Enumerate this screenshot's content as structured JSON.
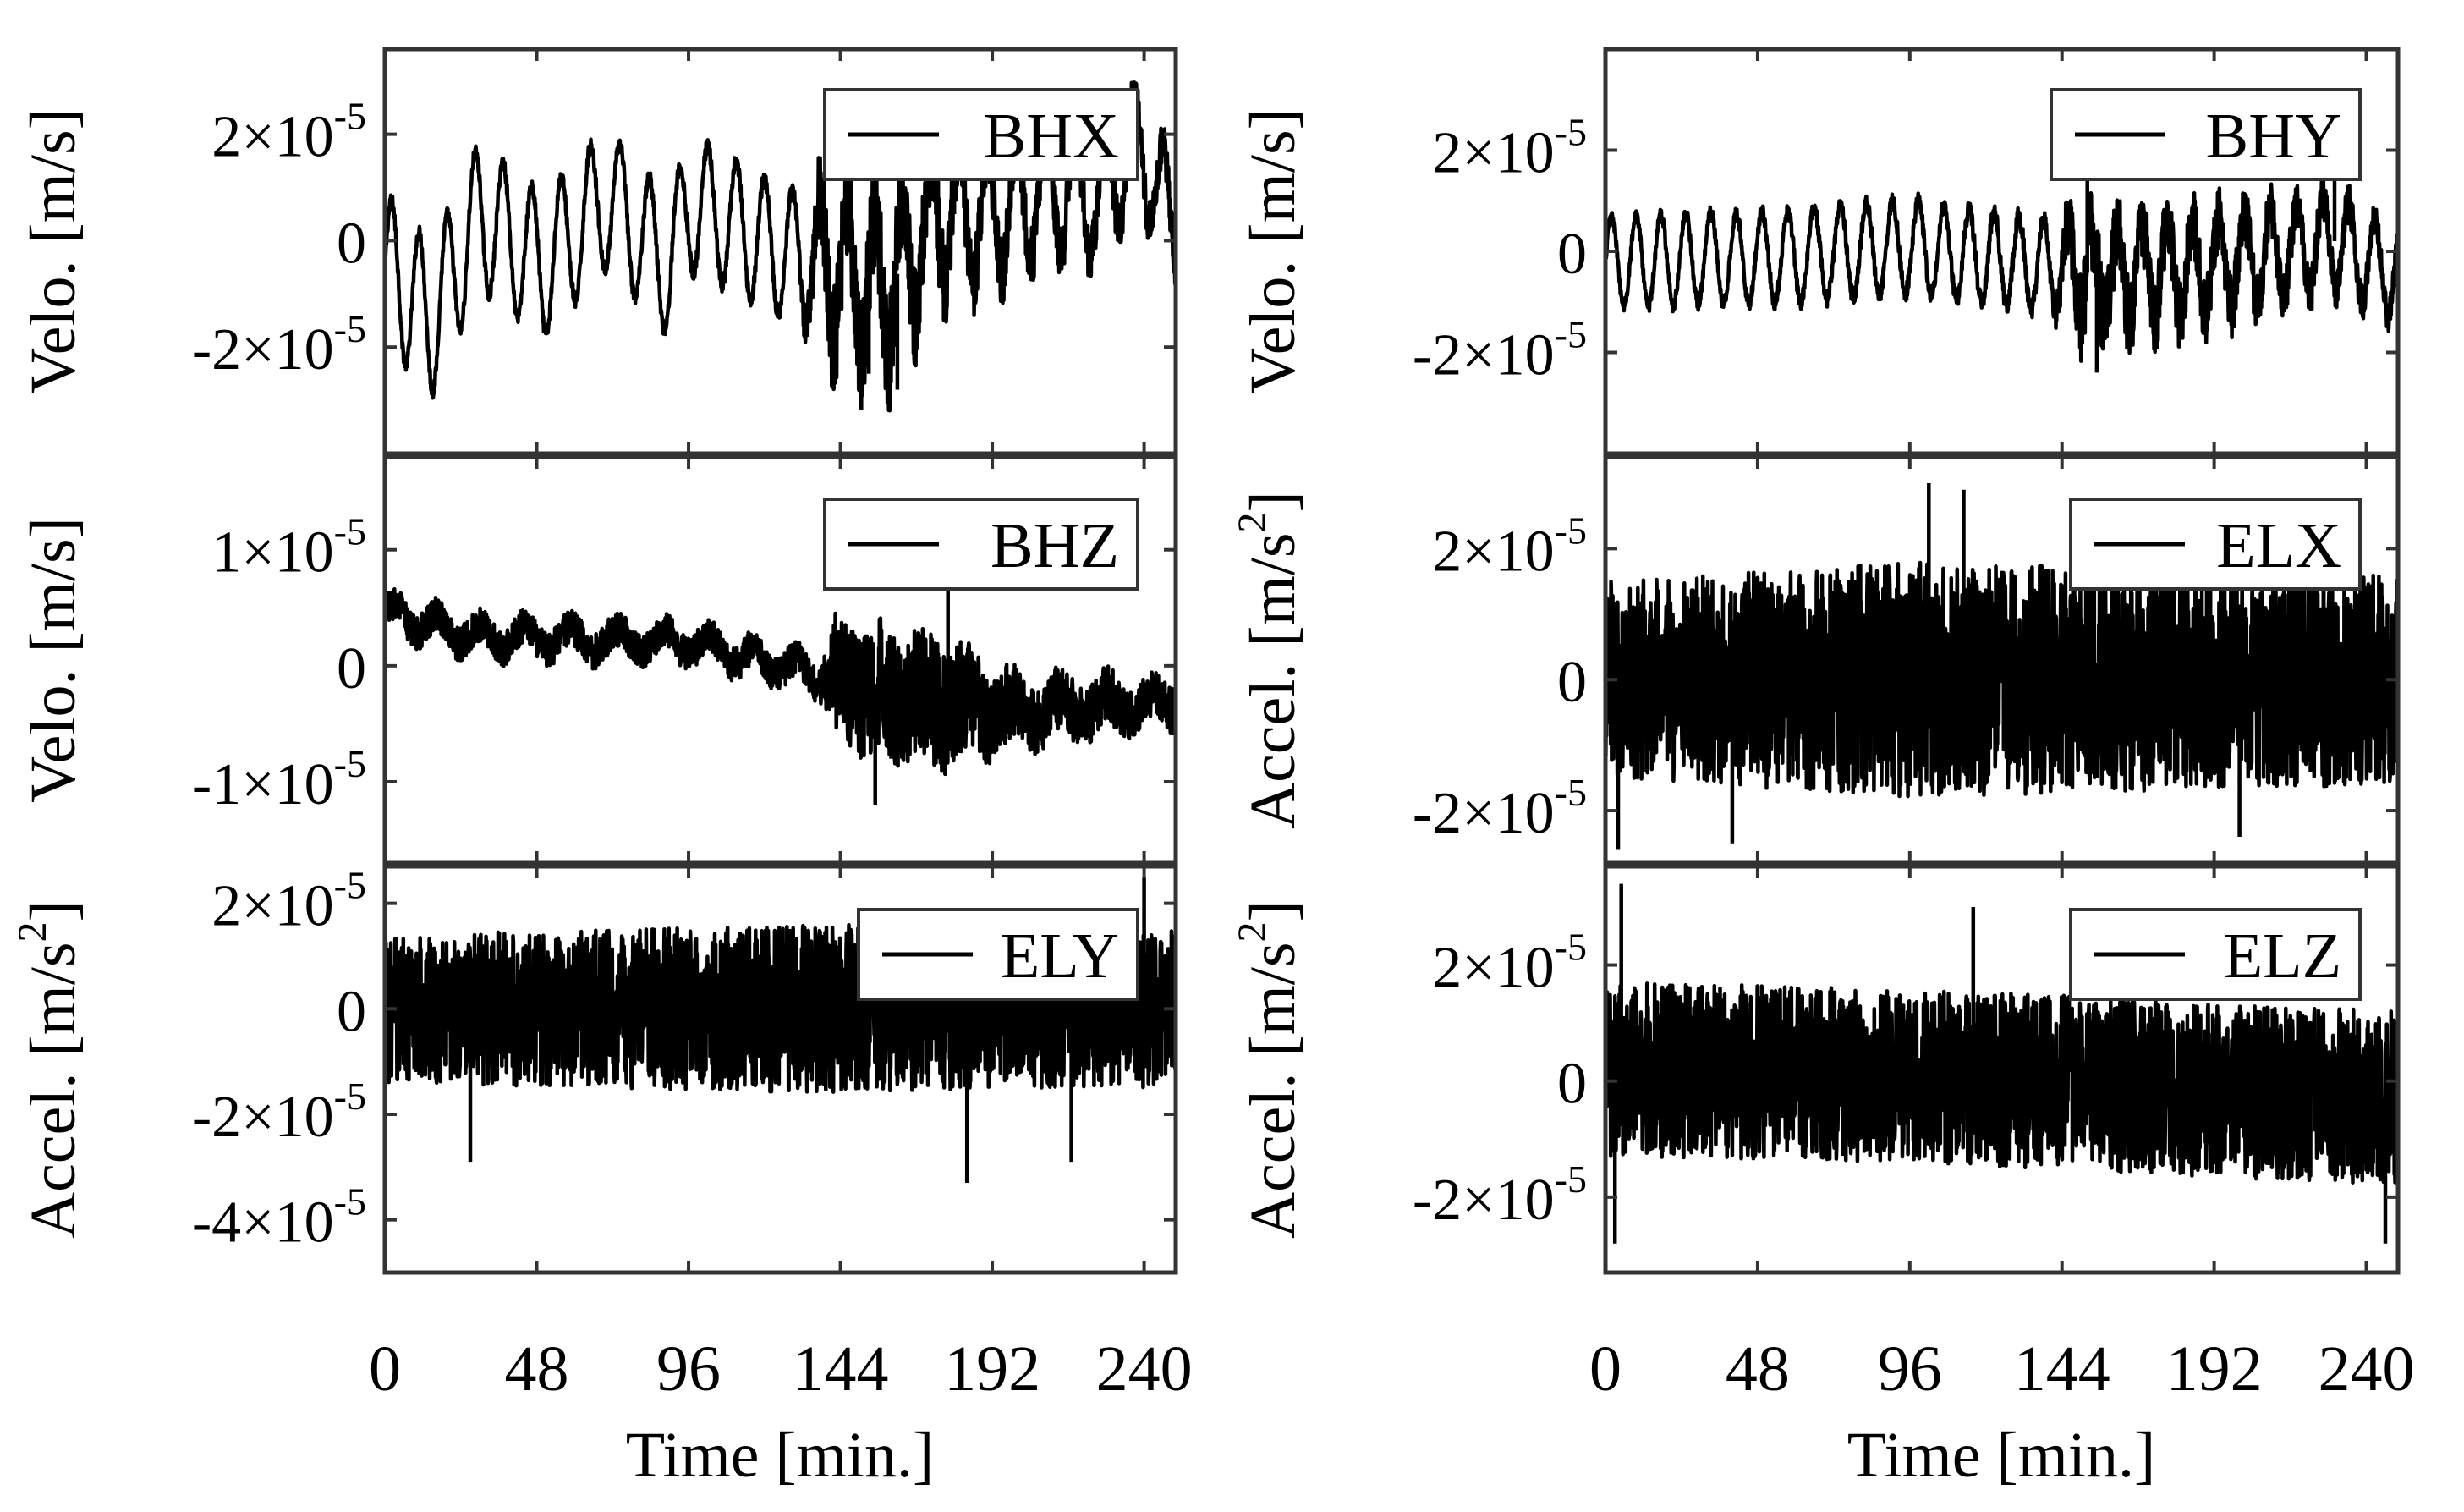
{
  "x_axis": {
    "ticks": [
      "0",
      "48",
      "96",
      "144",
      "192",
      "240"
    ],
    "label": "Time [min.]"
  },
  "chart_data": [
    {
      "type": "line",
      "id": "BHX",
      "legend": "BHX",
      "ylabel": "Velo. [m/s]",
      "yticks": [
        {
          "mant": "2",
          "exp": "-5"
        },
        {
          "mant": "0",
          "exp": ""
        },
        {
          "mant": "-2",
          "exp": "-5"
        }
      ],
      "yrange": [
        -4e-05,
        3.6e-05
      ],
      "xrange": [
        0,
        250
      ],
      "legend_position": "top-right",
      "series": [
        {
          "base": [
            [
              0,
              -5e-06
            ],
            [
              15,
              -1.5e-05
            ],
            [
              30,
              5e-06
            ],
            [
              50,
              -5e-06
            ],
            [
              70,
              8e-06
            ],
            [
              90,
              -5e-06
            ],
            [
              96,
              7e-06
            ],
            [
              110,
              3e-06
            ],
            [
              125,
              -2e-06
            ],
            [
              140,
              -5e-06
            ],
            [
              150,
              -8e-06
            ],
            [
              160,
              -8e-06
            ],
            [
              175,
              5e-06
            ],
            [
              190,
              5e-06
            ],
            [
              210,
              1e-05
            ],
            [
              225,
              8e-06
            ],
            [
              238,
              1.8e-05
            ],
            [
              250,
              3e-06
            ]
          ],
          "osc_amp": [
            [
              0,
              1.4e-05
            ],
            [
              130,
              1.2e-05
            ],
            [
              150,
              1.4e-05
            ],
            [
              250,
              1e-05
            ]
          ],
          "osc_period": 9,
          "noise_amp": [
            [
              0,
              1.2e-06
            ],
            [
              130,
              1.5e-06
            ],
            [
              140,
              1.1e-05
            ],
            [
              165,
              1.1e-05
            ],
            [
              185,
              7e-06
            ],
            [
              250,
              4e-06
            ]
          ],
          "spikes": [
            [
              153,
              -2.5e-05
            ],
            [
              162,
              -2.8e-05
            ],
            [
              180,
              1.8e-05
            ],
            [
              238,
              2.4e-05
            ]
          ]
        }
      ]
    },
    {
      "type": "line",
      "id": "BHY",
      "legend": "BHY",
      "ylabel": "Velo. [m/s]",
      "yticks": [
        {
          "mant": "2",
          "exp": "-5"
        },
        {
          "mant": "0",
          "exp": ""
        },
        {
          "mant": "-2",
          "exp": "-5"
        }
      ],
      "yrange": [
        -4e-05,
        4e-05
      ],
      "xrange": [
        0,
        250
      ],
      "legend_position": "top-right",
      "series": [
        {
          "base": [
            [
              0,
              -2e-06
            ],
            [
              60,
              -1e-06
            ],
            [
              96,
              1e-06
            ],
            [
              140,
              -3e-06
            ],
            [
              160,
              -5e-06
            ],
            [
              190,
              -3e-06
            ],
            [
              230,
              2e-06
            ],
            [
              250,
              -5e-06
            ]
          ],
          "osc_amp": [
            [
              0,
              9e-06
            ],
            [
              250,
              9e-06
            ]
          ],
          "osc_period": 8,
          "noise_amp": [
            [
              0,
              1.2e-06
            ],
            [
              140,
              2e-06
            ],
            [
              150,
              9e-06
            ],
            [
              170,
              8e-06
            ],
            [
              200,
              6e-06
            ],
            [
              250,
              3e-06
            ]
          ],
          "spikes": [
            [
              155,
              -2.4e-05
            ],
            [
              152,
              2e-05
            ],
            [
              230,
              1.7e-05
            ]
          ]
        }
      ]
    },
    {
      "type": "line",
      "id": "BHZ",
      "legend": "BHZ",
      "ylabel": "Velo. [m/s]",
      "yticks": [
        {
          "mant": "1",
          "exp": "-5"
        },
        {
          "mant": "0",
          "exp": ""
        },
        {
          "mant": "-1",
          "exp": "-5"
        }
      ],
      "yrange": [
        -1.7e-05,
        1.8e-05
      ],
      "xrange": [
        0,
        250
      ],
      "legend_position": "top-right",
      "series": [
        {
          "base": [
            [
              0,
              4.5e-06
            ],
            [
              30,
              2.5e-06
            ],
            [
              96,
              2e-06
            ],
            [
              140,
              -1e-06
            ],
            [
              150,
              -2e-06
            ],
            [
              200,
              -4e-06
            ],
            [
              250,
              -3e-06
            ]
          ],
          "osc_amp": [
            [
              0,
              1e-06
            ],
            [
              250,
              1e-06
            ]
          ],
          "osc_period": 14,
          "noise_amp": [
            [
              0,
              1.5e-06
            ],
            [
              138,
              1.5e-06
            ],
            [
              142,
              5e-06
            ],
            [
              170,
              6e-06
            ],
            [
              200,
              3e-06
            ],
            [
              250,
              2e-06
            ]
          ],
          "spikes": [
            [
              155,
              -1.2e-05
            ],
            [
              178,
              9e-06
            ],
            [
              160,
              -8e-06
            ]
          ]
        }
      ]
    },
    {
      "type": "line",
      "id": "ELX",
      "legend": "ELX",
      "ylabel": "Accel. [m/s2]",
      "yticks": [
        {
          "mant": "2",
          "exp": "-5"
        },
        {
          "mant": "0",
          "exp": ""
        },
        {
          "mant": "-2",
          "exp": "-5"
        }
      ],
      "yrange": [
        -2.8e-05,
        3.4e-05
      ],
      "xrange": [
        0,
        250
      ],
      "legend_position": "top-right",
      "series": [
        {
          "base": [
            [
              0,
              0.0
            ],
            [
              250,
              0.0
            ]
          ],
          "osc_amp": [
            [
              0,
              0.0
            ],
            [
              250,
              0.0
            ]
          ],
          "osc_period": 10,
          "noise_amp": [
            [
              0,
              1.5e-05
            ],
            [
              96,
              1.8e-05
            ],
            [
              250,
              1.6e-05
            ]
          ],
          "spikes": [
            [
              102,
              3e-05
            ],
            [
              113,
              2.9e-05
            ],
            [
              4,
              -2.6e-05
            ],
            [
              40,
              -2.5e-05
            ],
            [
              200,
              -2.4e-05
            ]
          ]
        }
      ]
    },
    {
      "type": "line",
      "id": "ELY",
      "legend": "ELY",
      "ylabel": "Accel. [m/s2]",
      "yticks": [
        {
          "mant": "2",
          "exp": "-5"
        },
        {
          "mant": "0",
          "exp": ""
        },
        {
          "mant": "-2",
          "exp": "-5"
        },
        {
          "mant": "-4",
          "exp": "-5"
        }
      ],
      "yrange": [
        -5e-05,
        2.7e-05
      ],
      "xrange": [
        0,
        250
      ],
      "legend_position": "top-right",
      "series": [
        {
          "base": [
            [
              0,
              0.0
            ],
            [
              250,
              0.0
            ]
          ],
          "osc_amp": [
            [
              0,
              0.0
            ],
            [
              250,
              0.0
            ]
          ],
          "osc_period": 10,
          "noise_amp": [
            [
              0,
              1.4e-05
            ],
            [
              144,
              1.6e-05
            ],
            [
              250,
              1.5e-05
            ]
          ],
          "spikes": [
            [
              184,
              -3.3e-05
            ],
            [
              27,
              -2.9e-05
            ],
            [
              240,
              2.5e-05
            ],
            [
              217,
              -2.9e-05
            ]
          ]
        }
      ]
    },
    {
      "type": "line",
      "id": "ELZ",
      "legend": "ELZ",
      "ylabel": "Accel. [m/s2]",
      "yticks": [
        {
          "mant": "2",
          "exp": "-5"
        },
        {
          "mant": "0",
          "exp": ""
        },
        {
          "mant": "-2",
          "exp": "-5"
        }
      ],
      "yrange": [
        -3.3e-05,
        3.7e-05
      ],
      "xrange": [
        0,
        250
      ],
      "legend_position": "top-right",
      "series": [
        {
          "base": [
            [
              0,
              2e-06
            ],
            [
              96,
              1e-06
            ],
            [
              250,
              -3e-06
            ]
          ],
          "osc_amp": [
            [
              0,
              0.0
            ],
            [
              250,
              0.0
            ]
          ],
          "osc_period": 10,
          "noise_amp": [
            [
              0,
              1.5e-05
            ],
            [
              250,
              1.5e-05
            ]
          ],
          "spikes": [
            [
              5,
              3.4e-05
            ],
            [
              116,
              3e-05
            ],
            [
              3,
              -2.8e-05
            ],
            [
              246,
              -2.8e-05
            ]
          ]
        }
      ]
    }
  ]
}
